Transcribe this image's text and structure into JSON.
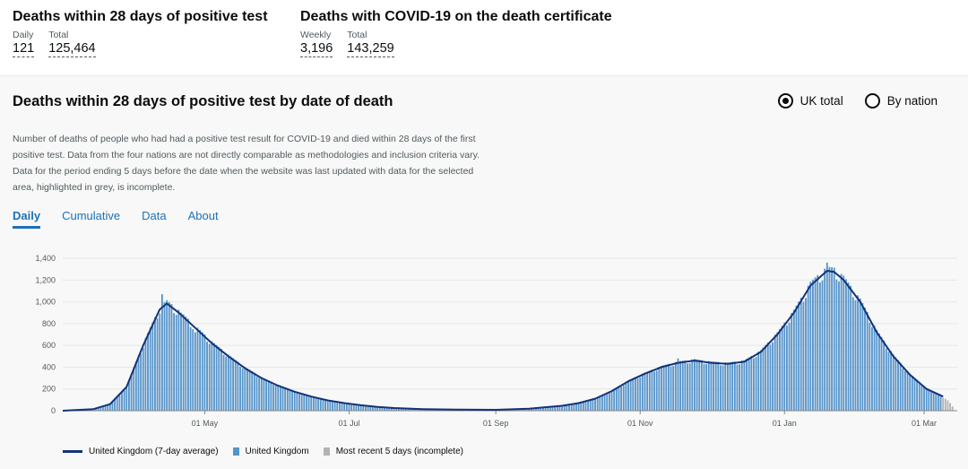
{
  "headline": {
    "cards": [
      {
        "title": "Deaths within 28 days of positive test",
        "metrics": [
          {
            "label": "Daily",
            "value": "121"
          },
          {
            "label": "Total",
            "value": "125,464"
          }
        ]
      },
      {
        "title": "Deaths with COVID-19 on the death certificate",
        "metrics": [
          {
            "label": "Weekly",
            "value": "3,196"
          },
          {
            "label": "Total",
            "value": "143,259"
          }
        ]
      }
    ]
  },
  "panel": {
    "title": "Deaths within 28 days of positive test by date of death",
    "radios": [
      {
        "label": "UK total",
        "selected": true
      },
      {
        "label": "By nation",
        "selected": false
      }
    ],
    "description": "Number of deaths of people who had had a positive test result for COVID-19 and died within 28 days of the first positive test. Data from the four nations are not directly comparable as methodologies and inclusion criteria vary. Data for the period ending 5 days before the date when the website was last updated with data for the selected area, highlighted in grey, is incomplete.",
    "tabs": [
      {
        "label": "Daily",
        "active": true
      },
      {
        "label": "Cumulative",
        "active": false
      },
      {
        "label": "Data",
        "active": false
      },
      {
        "label": "About",
        "active": false
      }
    ]
  },
  "colors": {
    "bar": "#5694ca",
    "line": "#12337a",
    "incomplete": "#b1b4b6",
    "link": "#1d70b8"
  },
  "chart_data": {
    "type": "bar",
    "ylim": [
      0,
      1400
    ],
    "yticks": [
      0,
      200,
      400,
      600,
      800,
      1000,
      1200,
      1400
    ],
    "ytick_labels": [
      "0",
      "200",
      "400",
      "600",
      "800",
      "1,000",
      "1,200",
      "1,400"
    ],
    "xlim": [
      "2020-03-02",
      "2021-03-15"
    ],
    "xticks": [
      {
        "date": "2020-05-01",
        "label": "01 May"
      },
      {
        "date": "2020-07-01",
        "label": "01 Jul"
      },
      {
        "date": "2020-09-01",
        "label": "01 Sep"
      },
      {
        "date": "2020-11-01",
        "label": "01 Nov"
      },
      {
        "date": "2021-01-01",
        "label": "01 Jan"
      },
      {
        "date": "2021-03-01",
        "label": "01 Mar"
      }
    ],
    "series": [
      {
        "name": "United Kingdom (7-day average)",
        "kind": "line"
      },
      {
        "name": "United Kingdom",
        "kind": "bar"
      },
      {
        "name": "Most recent 5 days (incomplete)",
        "kind": "bar"
      }
    ],
    "trend_points": [
      [
        "2020-03-02",
        0
      ],
      [
        "2020-03-15",
        15
      ],
      [
        "2020-03-22",
        60
      ],
      [
        "2020-03-29",
        220
      ],
      [
        "2020-04-05",
        600
      ],
      [
        "2020-04-12",
        930
      ],
      [
        "2020-04-15",
        985
      ],
      [
        "2020-04-20",
        900
      ],
      [
        "2020-04-27",
        760
      ],
      [
        "2020-05-04",
        620
      ],
      [
        "2020-05-11",
        500
      ],
      [
        "2020-05-18",
        390
      ],
      [
        "2020-05-25",
        300
      ],
      [
        "2020-06-01",
        230
      ],
      [
        "2020-06-08",
        175
      ],
      [
        "2020-06-15",
        130
      ],
      [
        "2020-06-22",
        95
      ],
      [
        "2020-06-29",
        70
      ],
      [
        "2020-07-06",
        50
      ],
      [
        "2020-07-13",
        35
      ],
      [
        "2020-07-20",
        25
      ],
      [
        "2020-08-01",
        15
      ],
      [
        "2020-08-15",
        10
      ],
      [
        "2020-09-01",
        8
      ],
      [
        "2020-09-15",
        18
      ],
      [
        "2020-09-29",
        45
      ],
      [
        "2020-10-06",
        70
      ],
      [
        "2020-10-13",
        110
      ],
      [
        "2020-10-20",
        180
      ],
      [
        "2020-10-27",
        270
      ],
      [
        "2020-11-03",
        340
      ],
      [
        "2020-11-10",
        400
      ],
      [
        "2020-11-17",
        440
      ],
      [
        "2020-11-24",
        460
      ],
      [
        "2020-12-01",
        440
      ],
      [
        "2020-12-08",
        430
      ],
      [
        "2020-12-15",
        450
      ],
      [
        "2020-12-22",
        540
      ],
      [
        "2020-12-29",
        700
      ],
      [
        "2021-01-05",
        900
      ],
      [
        "2021-01-12",
        1150
      ],
      [
        "2021-01-19",
        1285
      ],
      [
        "2021-01-22",
        1275
      ],
      [
        "2021-01-26",
        1200
      ],
      [
        "2021-02-02",
        1000
      ],
      [
        "2021-02-09",
        720
      ],
      [
        "2021-02-16",
        500
      ],
      [
        "2021-02-23",
        330
      ],
      [
        "2021-03-02",
        200
      ],
      [
        "2021-03-09",
        130
      ]
    ],
    "spikes": [
      [
        "2020-04-13",
        1070
      ],
      [
        "2020-04-21",
        900
      ],
      [
        "2020-04-27",
        720
      ],
      [
        "2020-11-17",
        480
      ],
      [
        "2020-11-24",
        475
      ],
      [
        "2021-01-19",
        1360
      ],
      [
        "2021-01-26",
        1240
      ]
    ],
    "bar_end_date": "2021-03-08",
    "incomplete_days": [
      [
        "2021-03-09",
        120
      ],
      [
        "2021-03-10",
        110
      ],
      [
        "2021-03-11",
        95
      ],
      [
        "2021-03-12",
        70
      ],
      [
        "2021-03-13",
        40
      ]
    ]
  }
}
